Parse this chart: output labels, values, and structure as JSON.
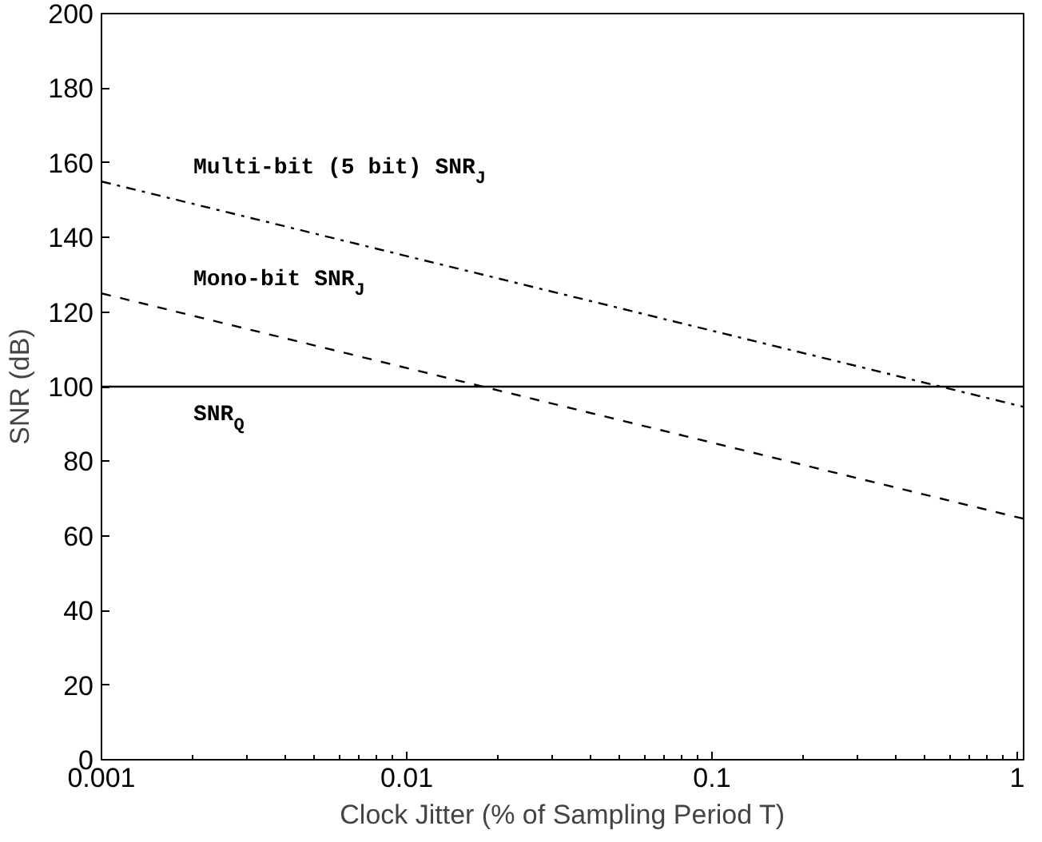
{
  "chart_data": {
    "type": "line",
    "xlabel": "Clock Jitter (% of Sampling Period T)",
    "ylabel": "SNR (dB)",
    "log": "x",
    "xlim": [
      0.001,
      1.05
    ],
    "ylim": [
      0,
      200
    ],
    "xticks": [
      {
        "value": 0.001,
        "label": "0.001"
      },
      {
        "value": 0.01,
        "label": "0.01"
      },
      {
        "value": 0.1,
        "label": "0.1"
      },
      {
        "value": 1,
        "label": "1"
      }
    ],
    "yticks": [
      0,
      20,
      40,
      60,
      80,
      100,
      120,
      140,
      160,
      180,
      200
    ],
    "grid": false,
    "series": [
      {
        "name": "Multi-bit (5 bit) SNR$_{J}$",
        "color": "#000000",
        "line_style": "dashdot",
        "x": [
          0.001,
          0.01,
          0.1,
          1,
          1.05
        ],
        "values": [
          155,
          135,
          115,
          95,
          94.6
        ]
      },
      {
        "name": "Mono-bit SNR$_{J}$",
        "color": "#000000",
        "line_style": "dashed",
        "x": [
          0.001,
          0.01,
          0.1,
          1,
          1.05
        ],
        "values": [
          125,
          105,
          85,
          65,
          64.6
        ]
      },
      {
        "name": "SNR$_{Q}$",
        "color": "#000000",
        "line_style": "solid",
        "x": [
          0.001,
          0.01,
          0.1,
          1,
          1.05
        ],
        "values": [
          100,
          100,
          100,
          100,
          100
        ]
      }
    ]
  }
}
